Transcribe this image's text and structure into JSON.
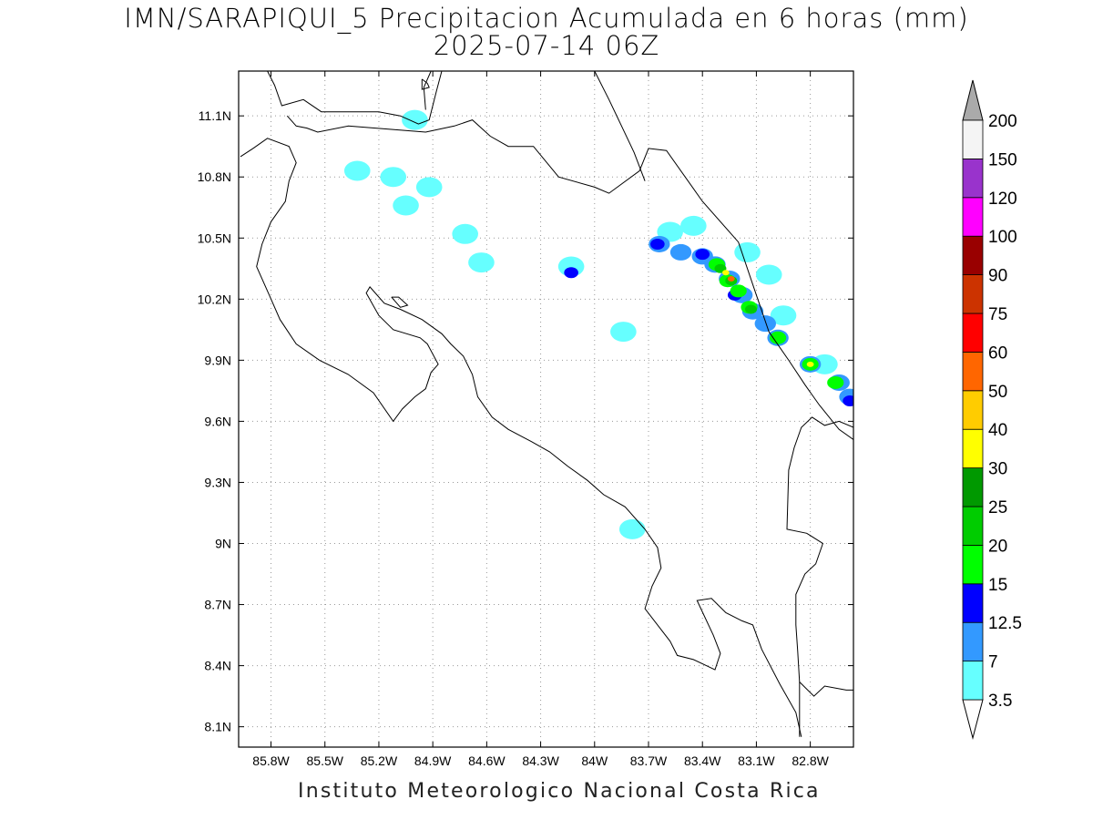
{
  "title": {
    "line1": "IMN/SARAPIQUI_5 Precipitacion Acumulada en 6 horas (mm)",
    "line2": "2025-07-14 06Z"
  },
  "footer": "Instituto Meteorologico Nacional Costa Rica",
  "map": {
    "lon_min": -85.98,
    "lon_max": -82.56,
    "lat_min": 8.0,
    "lat_max": 11.32,
    "x_ticks": [
      "85.8W",
      "85.5W",
      "85.2W",
      "84.9W",
      "84.6W",
      "84.3W",
      "84W",
      "83.7W",
      "83.4W",
      "83.1W",
      "82.8W"
    ],
    "x_tick_values": [
      -85.8,
      -85.5,
      -85.2,
      -84.9,
      -84.6,
      -84.3,
      -84.0,
      -83.7,
      -83.4,
      -83.1,
      -82.8
    ],
    "y_ticks": [
      "8.1N",
      "8.4N",
      "8.7N",
      "9N",
      "9.3N",
      "9.6N",
      "9.9N",
      "10.2N",
      "10.5N",
      "10.8N",
      "11.1N"
    ],
    "y_tick_values": [
      8.1,
      8.4,
      8.7,
      9.0,
      9.3,
      9.6,
      9.9,
      10.2,
      10.5,
      10.8,
      11.1
    ],
    "grid": "dotted"
  },
  "colorbar": {
    "labels": [
      "3.5",
      "7",
      "12.5",
      "15",
      "20",
      "25",
      "30",
      "40",
      "50",
      "60",
      "75",
      "90",
      "100",
      "120",
      "150",
      "200"
    ],
    "colors": [
      "#66ffff",
      "#3399ff",
      "#0000ff",
      "#00ff00",
      "#00cc00",
      "#009900",
      "#ffff00",
      "#ffcc00",
      "#ff6600",
      "#ff0000",
      "#cc3300",
      "#990000",
      "#ff00ff",
      "#9933cc",
      "#f4f4f4",
      "#aaaaaa"
    ]
  },
  "precip_cells": [
    {
      "lon": -85.0,
      "lat": 11.08,
      "level": 0
    },
    {
      "lon": -85.32,
      "lat": 10.83,
      "level": 0
    },
    {
      "lon": -85.12,
      "lat": 10.8,
      "level": 0
    },
    {
      "lon": -84.92,
      "lat": 10.75,
      "level": 0
    },
    {
      "lon": -85.05,
      "lat": 10.66,
      "level": 0
    },
    {
      "lon": -84.72,
      "lat": 10.52,
      "level": 0
    },
    {
      "lon": -84.63,
      "lat": 10.38,
      "level": 0
    },
    {
      "lon": -84.13,
      "lat": 10.36,
      "level": 0
    },
    {
      "lon": -84.13,
      "lat": 10.33,
      "level": 2
    },
    {
      "lon": -83.84,
      "lat": 10.04,
      "level": 0
    },
    {
      "lon": -83.79,
      "lat": 9.07,
      "level": 0
    },
    {
      "lon": -83.58,
      "lat": 10.53,
      "level": 0
    },
    {
      "lon": -83.45,
      "lat": 10.56,
      "level": 0
    },
    {
      "lon": -83.15,
      "lat": 10.43,
      "level": 0
    },
    {
      "lon": -83.03,
      "lat": 10.32,
      "level": 0
    },
    {
      "lon": -82.95,
      "lat": 10.12,
      "level": 0
    },
    {
      "lon": -82.72,
      "lat": 9.88,
      "level": 0
    },
    {
      "lon": -83.64,
      "lat": 10.47,
      "level": 1
    },
    {
      "lon": -83.52,
      "lat": 10.43,
      "level": 1
    },
    {
      "lon": -83.4,
      "lat": 10.41,
      "level": 1
    },
    {
      "lon": -83.33,
      "lat": 10.37,
      "level": 1
    },
    {
      "lon": -83.25,
      "lat": 10.3,
      "level": 1
    },
    {
      "lon": -83.18,
      "lat": 10.22,
      "level": 1
    },
    {
      "lon": -83.12,
      "lat": 10.14,
      "level": 1
    },
    {
      "lon": -83.05,
      "lat": 10.08,
      "level": 1
    },
    {
      "lon": -82.98,
      "lat": 10.01,
      "level": 1
    },
    {
      "lon": -82.8,
      "lat": 9.88,
      "level": 1
    },
    {
      "lon": -82.64,
      "lat": 9.79,
      "level": 1
    },
    {
      "lon": -82.58,
      "lat": 9.72,
      "level": 1
    },
    {
      "lon": -83.65,
      "lat": 10.47,
      "level": 2
    },
    {
      "lon": -83.4,
      "lat": 10.42,
      "level": 2
    },
    {
      "lon": -83.22,
      "lat": 10.22,
      "level": 2
    },
    {
      "lon": -82.58,
      "lat": 9.7,
      "level": 2
    },
    {
      "lon": -83.32,
      "lat": 10.37,
      "level": 3
    },
    {
      "lon": -83.26,
      "lat": 10.29,
      "level": 3
    },
    {
      "lon": -83.2,
      "lat": 10.24,
      "level": 3
    },
    {
      "lon": -83.14,
      "lat": 10.16,
      "level": 3
    },
    {
      "lon": -82.98,
      "lat": 10.01,
      "level": 3
    },
    {
      "lon": -82.8,
      "lat": 9.88,
      "level": 3
    },
    {
      "lon": -82.66,
      "lat": 9.79,
      "level": 3
    },
    {
      "lon": -83.3,
      "lat": 10.35,
      "level": 4
    },
    {
      "lon": -83.24,
      "lat": 10.29,
      "level": 4
    },
    {
      "lon": -83.13,
      "lat": 10.15,
      "level": 4
    },
    {
      "lon": -83.27,
      "lat": 10.33,
      "level": 6
    },
    {
      "lon": -82.8,
      "lat": 9.88,
      "level": 6
    },
    {
      "lon": -83.24,
      "lat": 10.3,
      "level": 8
    }
  ],
  "coastlines": [
    [
      [
        -85.97,
        10.9
      ],
      [
        -85.9,
        10.94
      ],
      [
        -85.82,
        10.99
      ],
      [
        -85.7,
        10.95
      ],
      [
        -85.66,
        10.87
      ],
      [
        -85.7,
        10.78
      ],
      [
        -85.72,
        10.68
      ],
      [
        -85.8,
        10.58
      ],
      [
        -85.85,
        10.47
      ],
      [
        -85.88,
        10.36
      ],
      [
        -85.81,
        10.22
      ],
      [
        -85.75,
        10.1
      ],
      [
        -85.66,
        9.98
      ],
      [
        -85.53,
        9.9
      ],
      [
        -85.37,
        9.83
      ],
      [
        -85.23,
        9.74
      ],
      [
        -85.12,
        9.6
      ],
      [
        -85.07,
        9.66
      ],
      [
        -85.0,
        9.72
      ],
      [
        -84.94,
        9.76
      ],
      [
        -84.91,
        9.84
      ],
      [
        -84.87,
        9.88
      ],
      [
        -84.93,
        9.98
      ],
      [
        -84.97,
        10.01
      ],
      [
        -85.12,
        10.05
      ],
      [
        -85.2,
        10.12
      ],
      [
        -85.27,
        10.23
      ],
      [
        -85.25,
        10.26
      ],
      [
        -85.17,
        10.18
      ],
      [
        -85.08,
        10.15
      ],
      [
        -84.96,
        10.1
      ],
      [
        -84.85,
        10.03
      ],
      [
        -84.8,
        9.98
      ],
      [
        -84.73,
        9.92
      ],
      [
        -84.68,
        9.83
      ],
      [
        -84.65,
        9.72
      ],
      [
        -84.57,
        9.62
      ],
      [
        -84.48,
        9.56
      ],
      [
        -84.35,
        9.5
      ],
      [
        -84.25,
        9.45
      ],
      [
        -84.15,
        9.38
      ],
      [
        -84.04,
        9.31
      ],
      [
        -83.95,
        9.24
      ],
      [
        -83.83,
        9.18
      ],
      [
        -83.72,
        9.07
      ],
      [
        -83.65,
        8.98
      ],
      [
        -83.63,
        8.88
      ],
      [
        -83.68,
        8.79
      ],
      [
        -83.72,
        8.68
      ],
      [
        -83.65,
        8.6
      ],
      [
        -83.58,
        8.52
      ],
      [
        -83.54,
        8.45
      ],
      [
        -83.45,
        8.43
      ],
      [
        -83.33,
        8.38
      ],
      [
        -83.3,
        8.46
      ],
      [
        -83.34,
        8.55
      ],
      [
        -83.43,
        8.72
      ],
      [
        -83.35,
        8.73
      ],
      [
        -83.27,
        8.66
      ],
      [
        -83.18,
        8.62
      ],
      [
        -83.12,
        8.6
      ],
      [
        -83.07,
        8.48
      ],
      [
        -82.97,
        8.31
      ],
      [
        -82.88,
        8.17
      ],
      [
        -82.85,
        8.05
      ]
    ],
    [
      [
        -85.13,
        10.21
      ],
      [
        -85.08,
        10.16
      ],
      [
        -85.04,
        10.17
      ],
      [
        -85.09,
        10.21
      ],
      [
        -85.13,
        10.21
      ]
    ],
    [
      [
        -84.85,
        11.32
      ],
      [
        -84.88,
        11.22
      ],
      [
        -84.92,
        11.08
      ],
      [
        -84.98,
        11.06
      ],
      [
        -85.08,
        11.1
      ],
      [
        -85.2,
        11.12
      ],
      [
        -85.37,
        11.12
      ],
      [
        -85.52,
        11.12
      ],
      [
        -85.62,
        11.18
      ],
      [
        -85.74,
        11.15
      ],
      [
        -85.78,
        11.25
      ],
      [
        -85.82,
        11.32
      ]
    ],
    [
      [
        -85.71,
        11.1
      ],
      [
        -85.66,
        11.05
      ],
      [
        -85.6,
        11.04
      ],
      [
        -85.54,
        11.02
      ],
      [
        -85.37,
        11.05
      ],
      [
        -84.94,
        11.02
      ],
      [
        -84.78,
        11.05
      ],
      [
        -84.68,
        11.08
      ],
      [
        -84.58,
        11.0
      ],
      [
        -84.48,
        10.95
      ],
      [
        -84.34,
        10.95
      ],
      [
        -84.2,
        10.8
      ],
      [
        -84.0,
        10.75
      ],
      [
        -83.92,
        10.72
      ],
      [
        -83.75,
        10.83
      ],
      [
        -83.7,
        10.94
      ],
      [
        -83.6,
        10.93
      ],
      [
        -83.4,
        10.68
      ],
      [
        -83.2,
        10.48
      ],
      [
        -83.1,
        10.22
      ],
      [
        -83.03,
        10.04
      ],
      [
        -82.92,
        9.9
      ],
      [
        -82.83,
        9.78
      ],
      [
        -82.75,
        9.68
      ],
      [
        -82.64,
        9.56
      ],
      [
        -82.56,
        9.51
      ]
    ],
    [
      [
        -84.0,
        11.32
      ],
      [
        -83.92,
        11.18
      ],
      [
        -83.85,
        11.05
      ],
      [
        -83.78,
        10.92
      ],
      [
        -83.72,
        10.78
      ]
    ],
    [
      [
        -84.91,
        11.32
      ],
      [
        -84.95,
        11.24
      ],
      [
        -84.94,
        11.13
      ]
    ],
    [
      [
        -84.96,
        11.28
      ],
      [
        -84.93,
        11.26
      ],
      [
        -84.92,
        11.24
      ],
      [
        -84.96,
        11.23
      ],
      [
        -84.96,
        11.28
      ]
    ],
    [
      [
        -82.56,
        9.57
      ],
      [
        -82.64,
        9.6
      ],
      [
        -82.72,
        9.58
      ],
      [
        -82.79,
        9.62
      ],
      [
        -82.85,
        9.57
      ],
      [
        -82.89,
        9.47
      ],
      [
        -82.92,
        9.36
      ],
      [
        -82.93,
        9.07
      ],
      [
        -82.82,
        9.05
      ],
      [
        -82.73,
        9.0
      ],
      [
        -82.77,
        8.9
      ],
      [
        -82.83,
        8.85
      ],
      [
        -82.88,
        8.75
      ],
      [
        -82.88,
        8.6
      ],
      [
        -82.87,
        8.47
      ],
      [
        -82.86,
        8.32
      ],
      [
        -82.86,
        8.05
      ]
    ],
    [
      [
        -82.86,
        8.32
      ],
      [
        -82.78,
        8.25
      ],
      [
        -82.72,
        8.3
      ],
      [
        -82.6,
        8.28
      ],
      [
        -82.56,
        8.28
      ]
    ]
  ]
}
